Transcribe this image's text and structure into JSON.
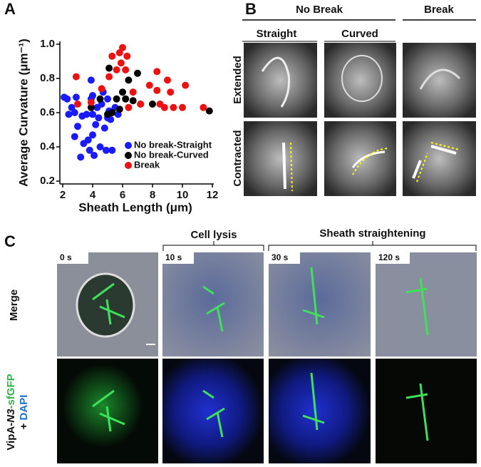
{
  "panel_a": {
    "label": "A"
  },
  "chart_data": {
    "type": "scatter",
    "x_label": "Sheath Length (μm)",
    "y_label": "Average Curvature (μm⁻¹)",
    "xlim": [
      2,
      12
    ],
    "ylim": [
      0.2,
      1.0
    ],
    "xticks": [
      2,
      4,
      6,
      8,
      10,
      12
    ],
    "yticks": [
      0.2,
      0.4,
      0.6,
      0.8,
      {
        "value": 1.0,
        "label": "1.0"
      }
    ],
    "legend": "lower right",
    "series": [
      {
        "name": "No break-Straight",
        "color": "#1a1aff",
        "x": [
          2.1,
          2.3,
          2.4,
          2.6,
          2.8,
          2.9,
          2.8,
          3.0,
          3.2,
          3.3,
          3.4,
          3.6,
          3.7,
          3.8,
          3.9,
          3.9,
          4.0,
          4.0,
          4.0,
          4.1,
          4.2,
          4.3,
          4.4,
          4.5,
          4.6,
          4.7,
          4.8,
          4.9,
          5.0,
          5.0,
          5.1,
          5.2,
          5.3,
          5.5,
          5.7
        ],
        "values": [
          0.69,
          0.68,
          0.59,
          0.63,
          0.6,
          0.69,
          0.46,
          0.52,
          0.34,
          0.58,
          0.42,
          0.59,
          0.44,
          0.38,
          0.79,
          0.68,
          0.7,
          0.59,
          0.47,
          0.35,
          0.53,
          0.63,
          0.57,
          0.4,
          0.65,
          0.72,
          0.51,
          0.38,
          0.57,
          0.68,
          0.61,
          0.56,
          0.38,
          0.63,
          0.59
        ]
      },
      {
        "name": "No break-Curved",
        "color": "#000000",
        "x": [
          3.9,
          4.5,
          5.0,
          5.1,
          5.3,
          5.6,
          5.8,
          6.0,
          6.2,
          6.4,
          6.7,
          7.0,
          7.2,
          8.0,
          11.8
        ],
        "values": [
          0.63,
          0.68,
          0.59,
          0.86,
          0.6,
          0.68,
          0.62,
          0.72,
          0.68,
          0.79,
          0.67,
          0.83,
          0.65,
          0.65,
          0.61
        ]
      },
      {
        "name": "Break",
        "color": "#ee1111",
        "x": [
          2.9,
          3.0,
          3.9,
          4.6,
          5.1,
          5.3,
          5.6,
          5.8,
          5.9,
          6.0,
          6.2,
          6.3,
          6.4,
          6.7,
          7.2,
          7.8,
          8.3,
          8.3,
          8.5,
          8.8,
          9.0,
          9.2,
          9.4,
          10.0,
          10.2,
          11.4
        ],
        "values": [
          0.81,
          0.65,
          0.66,
          0.74,
          0.81,
          0.93,
          0.85,
          0.95,
          0.89,
          0.98,
          0.85,
          0.93,
          0.63,
          0.72,
          0.65,
          0.76,
          0.84,
          0.73,
          0.65,
          0.63,
          0.79,
          0.72,
          0.63,
          0.63,
          0.76,
          0.63
        ]
      }
    ]
  },
  "panel_b": {
    "label": "B",
    "headers": [
      "No Break",
      "Break"
    ],
    "subheaders": [
      "Straight",
      "Curved"
    ],
    "rows": [
      "Extended",
      "Contracted"
    ]
  },
  "panel_c": {
    "label": "C",
    "headers": [
      "Cell lysis",
      "Sheath straightening"
    ],
    "times": [
      "0 s",
      "10 s",
      "30 s",
      "120 s"
    ],
    "rows": [
      "Merge"
    ],
    "fluor_label": [
      "VipA-",
      "N3",
      "-sfGFP",
      "+ ",
      "DAPI"
    ]
  }
}
